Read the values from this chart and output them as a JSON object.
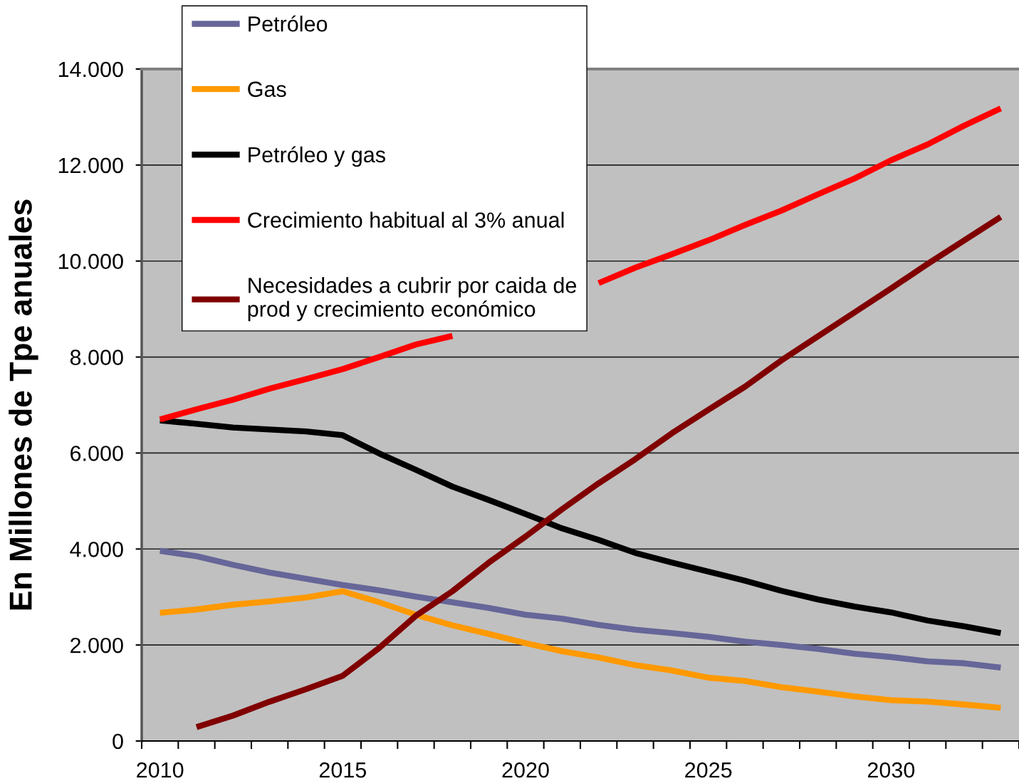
{
  "chart_data": {
    "type": "line",
    "ylabel": "En Millones de Tpe anuales",
    "categories": [
      "2010",
      null,
      null,
      null,
      null,
      "2015",
      null,
      null,
      null,
      null,
      "2020",
      null,
      null,
      null,
      null,
      "2025",
      null,
      null,
      null,
      null,
      "2030",
      null,
      null,
      null
    ],
    "series": [
      {
        "name": "Petróleo",
        "color": "#666699",
        "values": [
          3960,
          3850,
          3670,
          3510,
          3380,
          3250,
          3140,
          3010,
          2890,
          2770,
          2630,
          2550,
          2420,
          2320,
          2250,
          2170,
          2070,
          2000,
          1920,
          1820,
          1750,
          1660,
          1620,
          1530
        ]
      },
      {
        "name": "Gas",
        "color": "#ff9900",
        "values": [
          2670,
          2740,
          2840,
          2910,
          2990,
          3120,
          2890,
          2630,
          2410,
          2230,
          2040,
          1870,
          1740,
          1580,
          1470,
          1320,
          1250,
          1120,
          1030,
          930,
          850,
          820,
          760,
          690
        ]
      },
      {
        "name": "Petróleo y gas",
        "color": "#000000",
        "values": [
          6680,
          6610,
          6530,
          6490,
          6450,
          6370,
          5990,
          5650,
          5300,
          5020,
          4730,
          4430,
          4190,
          3920,
          3720,
          3530,
          3340,
          3130,
          2950,
          2800,
          2680,
          2510,
          2390,
          2250
        ]
      },
      {
        "name": "Crecimiento habitual al 3% anual",
        "color": "#ff0000",
        "values": [
          6700,
          6910,
          7110,
          7340,
          7540,
          7750,
          8000,
          8260,
          8440,
          null,
          null,
          null,
          9540,
          9860,
          10140,
          10430,
          10750,
          11050,
          11390,
          11720,
          12100,
          12430,
          12820,
          13180
        ]
      },
      {
        "name": "Necesidades a cubrir por caida de\nprod y crecimiento económico",
        "color": "#800000",
        "values": [
          null,
          290,
          530,
          820,
          1080,
          1360,
          1940,
          2610,
          3120,
          3720,
          4260,
          4830,
          5370,
          5870,
          6410,
          6900,
          7380,
          7930,
          8430,
          8930,
          9430,
          9940,
          10430,
          10920
        ]
      }
    ],
    "ylim": [
      0,
      14000
    ],
    "yticks": [
      0,
      {
        "value": 2000,
        "label": "2.000"
      },
      {
        "value": 4000,
        "label": "4.000"
      },
      {
        "value": 6000,
        "label": "6.000"
      },
      {
        "value": 8000,
        "label": "8.000"
      },
      {
        "value": 10000,
        "label": "10.000"
      },
      {
        "value": 12000,
        "label": "12.000"
      },
      {
        "value": 14000,
        "label": "14.000"
      }
    ],
    "grid": "y",
    "legend": "top left",
    "line_style": "solid"
  }
}
